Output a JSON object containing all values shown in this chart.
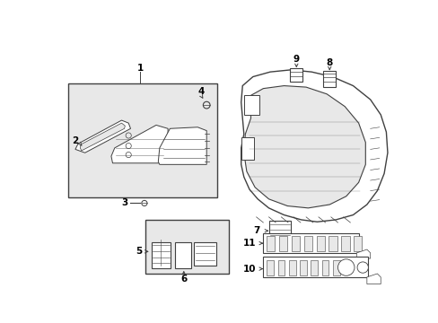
{
  "bg_color": "#ffffff",
  "line_color": "#404040",
  "fill_color": "#e8e8e8",
  "fig_width": 4.89,
  "fig_height": 3.6,
  "dpi": 100
}
